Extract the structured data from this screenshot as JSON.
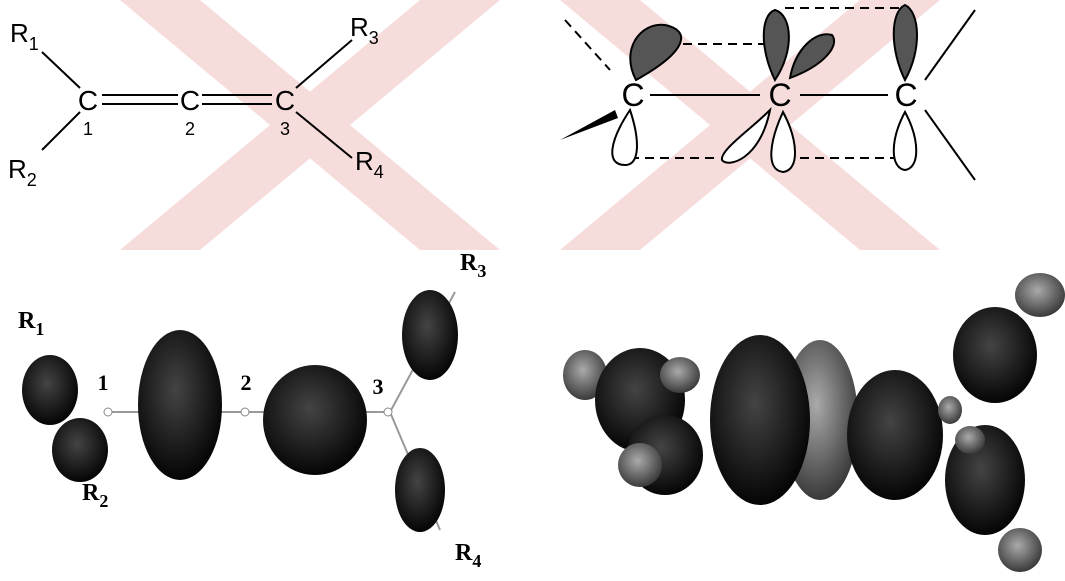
{
  "structure": {
    "atoms": [
      {
        "symbol": "C",
        "number": "1"
      },
      {
        "symbol": "C",
        "number": "2"
      },
      {
        "symbol": "C",
        "number": "3"
      }
    ],
    "substituents": [
      {
        "base": "R",
        "sub": "1"
      },
      {
        "base": "R",
        "sub": "2"
      },
      {
        "base": "R",
        "sub": "3"
      },
      {
        "base": "R",
        "sub": "4"
      }
    ]
  },
  "orbitals": {
    "atoms": [
      "C",
      "C",
      "C"
    ]
  },
  "isosurface": {
    "atom_numbers": [
      "1",
      "2",
      "3"
    ],
    "substituents": [
      {
        "base": "R",
        "sub": "1"
      },
      {
        "base": "R",
        "sub": "2"
      },
      {
        "base": "R",
        "sub": "3"
      },
      {
        "base": "R",
        "sub": "4"
      }
    ]
  }
}
